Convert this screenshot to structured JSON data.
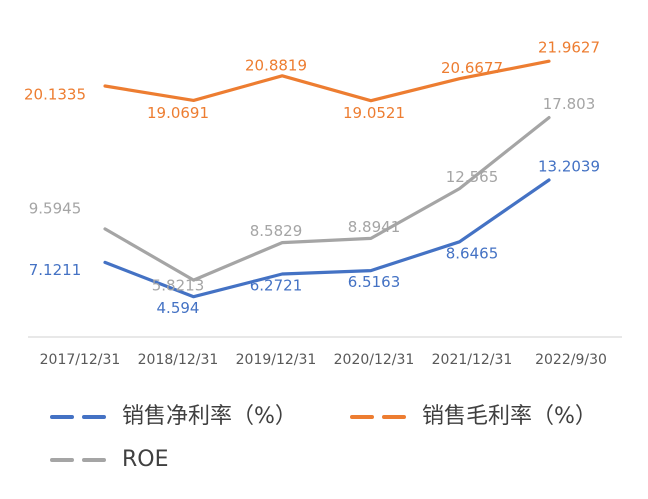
{
  "chart_data": {
    "type": "line",
    "categories": [
      "2017/12/31",
      "2018/12/31",
      "2019/12/31",
      "2020/12/31",
      "2021/12/31",
      "2022/9/30"
    ],
    "series": [
      {
        "name": "销售净利率（%）",
        "color": "#4472C4",
        "values": [
          7.1211,
          4.594,
          6.2721,
          6.5163,
          8.6465,
          13.2039
        ],
        "labels": [
          "7.1211",
          "4.594",
          "6.2721",
          "6.5163",
          "8.6465",
          "13.2039"
        ]
      },
      {
        "name": "销售毛利率（%）",
        "color": "#ED7D31",
        "values": [
          20.1335,
          19.0691,
          20.8819,
          19.0521,
          20.6677,
          21.9627
        ],
        "labels": [
          "20.1335",
          "19.0691",
          "20.8819",
          "19.0521",
          "20.6677",
          "21.9627"
        ]
      },
      {
        "name": "ROE",
        "color": "#A5A5A5",
        "values": [
          9.5945,
          5.8213,
          8.5829,
          8.8941,
          12.565,
          17.803
        ],
        "labels": [
          "9.5945",
          "5.8213",
          "8.5829",
          "8.8941",
          "12.565",
          "17.803"
        ]
      }
    ],
    "ylim": [
      0,
      25
    ],
    "grid": false,
    "legend": "bottom"
  }
}
